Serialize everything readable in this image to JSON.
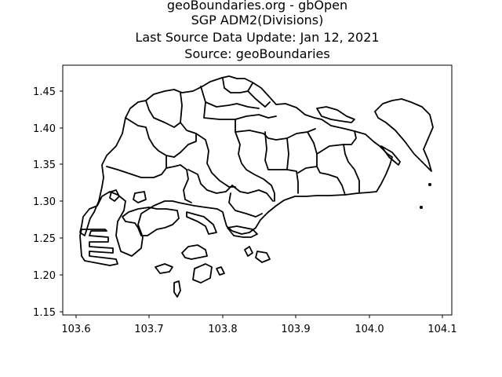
{
  "title": {
    "lines": [
      "geoBoundaries.org - gbOpen",
      "SGP ADM2(Divisions)",
      "Last Source Data Update: Jan 12, 2021",
      "Source: geoBoundaries"
    ]
  },
  "axes": {
    "x_ticks": [
      "103.6",
      "103.7",
      "103.8",
      "103.9",
      "104.0",
      "104.1"
    ],
    "y_ticks": [
      "1.15",
      "1.20",
      "1.25",
      "1.30",
      "1.35",
      "1.40",
      "1.45"
    ]
  },
  "map": {
    "line_color": "#000000",
    "background": "#ffffff",
    "xlim": [
      103.585,
      104.115
    ],
    "ylim": [
      1.14,
      1.49
    ]
  }
}
